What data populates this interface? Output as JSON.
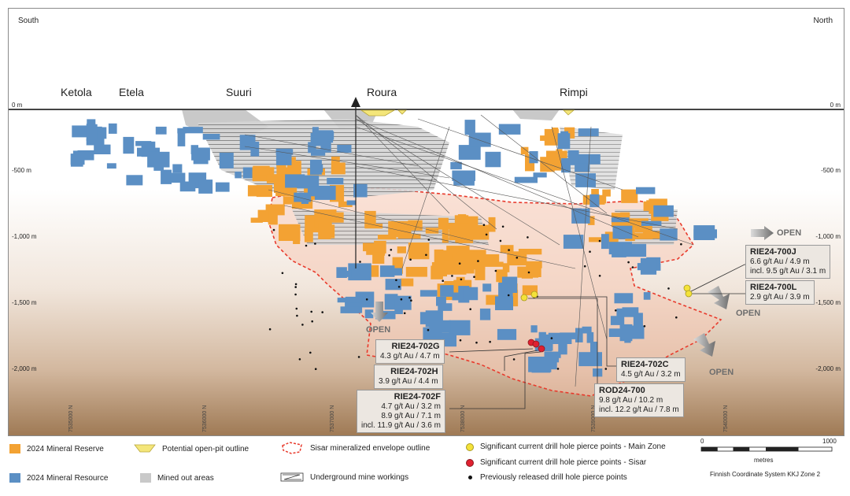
{
  "directions": {
    "south": "South",
    "north": "North"
  },
  "areas": [
    "Ketola",
    "Etela",
    "Suuri",
    "Roura",
    "Rimpi"
  ],
  "depths": {
    "d0": "0 m",
    "d500": "-500 m",
    "d1000": "-1,000 m",
    "d1500": "-1,500 m",
    "d2000": "-2,000 m"
  },
  "coords": [
    "7535000 N",
    "7536000 N",
    "7537000 N",
    "7538000 N",
    "7539000 N",
    "7540000 N"
  ],
  "open_label": "OPEN",
  "callouts": {
    "rie700j": {
      "title": "RIE24-700J",
      "lines": [
        "6.6 g/t Au / 4.9 m",
        "incl. 9.5 g/t Au / 3.1 m"
      ]
    },
    "rie700l": {
      "title": "RIE24-700L",
      "lines": [
        "2.9 g/t Au / 3.9 m"
      ]
    },
    "rie702g": {
      "title": "RIE24-702G",
      "lines": [
        "4.3 g/t Au / 4.7 m"
      ]
    },
    "rie702h": {
      "title": "RIE24-702H",
      "lines": [
        "3.9 g/t Au / 4.4 m"
      ]
    },
    "rie702f": {
      "title": "RIE24-702F",
      "lines": [
        "4.7 g/t Au / 3.2 m",
        "8.9 g/t Au / 7.1 m",
        "incl. 11.9 g/t Au / 3.6 m"
      ]
    },
    "rie702c": {
      "title": "RIE24-702C",
      "lines": [
        "4.5 g/t Au / 3.2 m"
      ]
    },
    "rod700": {
      "title": "ROD24-700",
      "lines": [
        "9.8 g/t Au / 10.2 m",
        "incl. 12.2 g/t Au / 7.8 m"
      ]
    }
  },
  "legend": {
    "reserve": "2024 Mineral Reserve",
    "resource": "2024 Mineral Resource",
    "open_pit": "Potential open-pit outline",
    "mined_out": "Mined out areas",
    "envelope": "Sisar mineralized envelope outline",
    "workings": "Underground mine workings",
    "main_zone": "Significant current drill hole pierce points - Main Zone",
    "sisar": "Significant current drill hole pierce points - Sisar",
    "previous": "Previously released drill hole pierce points"
  },
  "scale": {
    "start": "0",
    "end": "1000",
    "unit": "metres",
    "system": "Finnish Coordinate System KKJ Zone 2"
  },
  "colors": {
    "reserve": "#f3a233",
    "resource": "#5b8fc4",
    "mined": "#c9c9c9",
    "envelope": "#e83a2c",
    "main_zone": "#f4e23a",
    "sisar": "#e02030",
    "previous": "#111111",
    "envelope_fill": "#f5c8b5"
  }
}
